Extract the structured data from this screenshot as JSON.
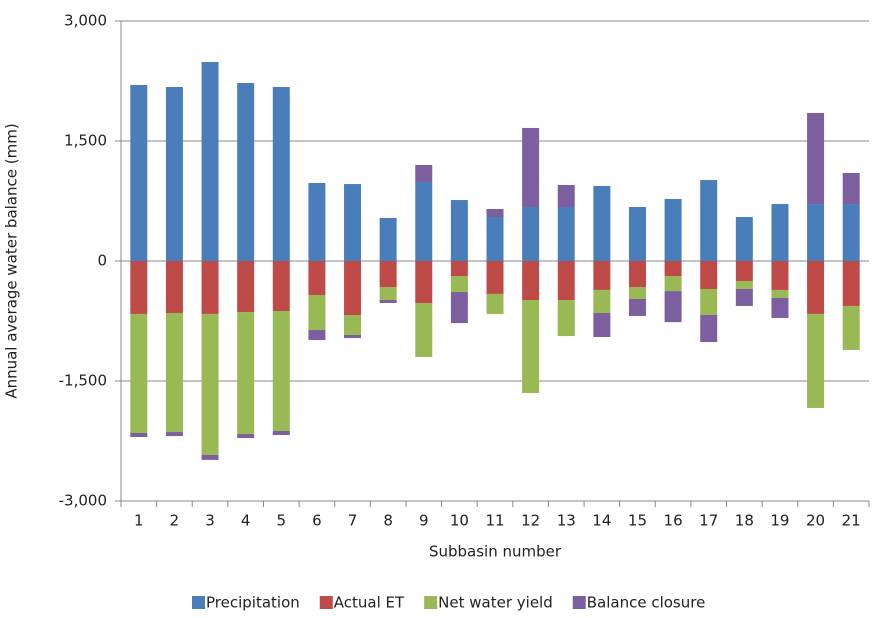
{
  "chart_data": {
    "type": "stacked-bar",
    "y_label": "Annual average water balance (mm)",
    "x_label": "Subbasin number",
    "categories": [
      "1",
      "2",
      "3",
      "4",
      "5",
      "6",
      "7",
      "8",
      "9",
      "10",
      "11",
      "12",
      "13",
      "14",
      "15",
      "16",
      "17",
      "18",
      "19",
      "20",
      "21"
    ],
    "series": [
      {
        "name": "Precipitation",
        "color": "#4a7ebb",
        "values": [
          2200,
          2175,
          2488,
          2225,
          2175,
          975,
          962,
          538,
          988,
          762,
          550,
          675,
          675,
          938,
          675,
          775,
          1012,
          550,
          712,
          712,
          712
        ]
      },
      {
        "name": "Actual ET",
        "color": "#be4b48",
        "values": [
          -662,
          -650,
          -662,
          -638,
          -625,
          -425,
          -675,
          -325,
          -525,
          -188,
          -412,
          -488,
          -488,
          -362,
          -325,
          -188,
          -350,
          -250,
          -362,
          -662,
          -562
        ]
      },
      {
        "name": "Net water yield",
        "color": "#98b954",
        "values": [
          -1488,
          -1488,
          -1762,
          -1525,
          -1500,
          -438,
          -250,
          -162,
          -675,
          -200,
          -250,
          -1162,
          -450,
          -288,
          -150,
          -188,
          -325,
          -100,
          -100,
          -1175,
          -550
        ]
      },
      {
        "name": "Balance closure",
        "color": "#7d5fa0",
        "values": [
          -50,
          -50,
          -62,
          -50,
          -50,
          -125,
          -38,
          -38,
          212,
          -388,
          100,
          988,
          275,
          -300,
          -212,
          -388,
          -338,
          -212,
          -250,
          1138,
          388
        ]
      }
    ],
    "ylim": [
      -3000,
      3000
    ],
    "yticks": [
      {
        "value": -3000,
        "label": "-3,000"
      },
      {
        "value": -1500,
        "label": "-1,500"
      },
      0,
      {
        "value": 1500,
        "label": "1,500"
      },
      {
        "value": 3000,
        "label": "3,000"
      }
    ],
    "grid": true,
    "legend": "bottom"
  }
}
